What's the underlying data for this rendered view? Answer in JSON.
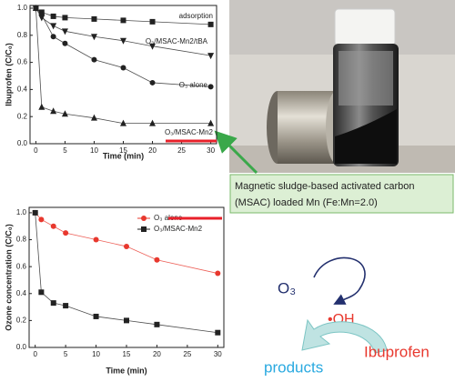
{
  "chart_data": [
    {
      "type": "line",
      "x_label": "Time (min)",
      "y_label": "Ibuprofen (C/C₀)",
      "x": [
        0,
        1,
        3,
        5,
        10,
        15,
        20,
        30
      ],
      "series": [
        {
          "name": "adsorption",
          "color": "#222222",
          "marker": "square",
          "values": [
            1.0,
            0.97,
            0.94,
            0.93,
            0.92,
            0.91,
            0.9,
            0.88
          ]
        },
        {
          "name": "O₃/MSAC-Mn2/tBA",
          "color": "#222222",
          "marker": "triangle-down",
          "values": [
            1.0,
            0.93,
            0.87,
            0.83,
            0.79,
            0.76,
            0.72,
            0.65
          ]
        },
        {
          "name": "O₃ alone",
          "color": "#222222",
          "marker": "circle",
          "values": [
            1.0,
            0.95,
            0.79,
            0.74,
            0.62,
            0.56,
            0.45,
            0.42
          ]
        },
        {
          "name": "O₃/MSAC-Mn2",
          "color": "#222222",
          "marker": "triangle-up",
          "values": [
            1.0,
            0.27,
            0.24,
            0.22,
            0.19,
            0.15,
            0.15,
            0.15
          ]
        }
      ],
      "xlim": [
        -1,
        31
      ],
      "xticks": [
        0,
        5,
        10,
        15,
        20,
        25,
        30
      ],
      "ylim": [
        0,
        1.02
      ],
      "yticks": [
        {
          "value": 0,
          "label": "0.0"
        },
        0.2,
        0.4,
        0.6,
        0.8,
        {
          "value": 1,
          "label": "1.0"
        }
      ],
      "legend": "inline"
    },
    {
      "type": "line",
      "x_label": "Time (min)",
      "y_label": "Ozone concentration (C/C₀)",
      "x": [
        0,
        1,
        3,
        5,
        10,
        15,
        20,
        30
      ],
      "series": [
        {
          "name": "O₃ alone",
          "color": "#e8382e",
          "marker": "circle",
          "values": [
            1.0,
            0.95,
            0.9,
            0.85,
            0.8,
            0.75,
            0.65,
            0.55
          ]
        },
        {
          "name": "O₃/MSAC-Mn2",
          "color": "#222222",
          "marker": "square",
          "values": [
            1.0,
            0.41,
            0.33,
            0.31,
            0.23,
            0.2,
            0.17,
            0.11
          ]
        }
      ],
      "xlim": [
        -1,
        31
      ],
      "xticks": [
        0,
        5,
        10,
        15,
        20,
        25,
        30
      ],
      "ylim": [
        0,
        1.04
      ],
      "yticks": [
        {
          "value": 0,
          "label": "0.0"
        },
        0.2,
        0.4,
        0.6,
        0.8,
        {
          "value": 1,
          "label": "1.0"
        }
      ],
      "legend": "upper right"
    }
  ],
  "caption": {
    "line1": "Magnetic sludge-based activated carbon",
    "line2": "(MSAC) loaded Mn (Fe:Mn=2.0)"
  },
  "diagram": {
    "oxidant": "O₃",
    "radical": "•OH",
    "target": "Ibuprofen",
    "result": "products"
  }
}
